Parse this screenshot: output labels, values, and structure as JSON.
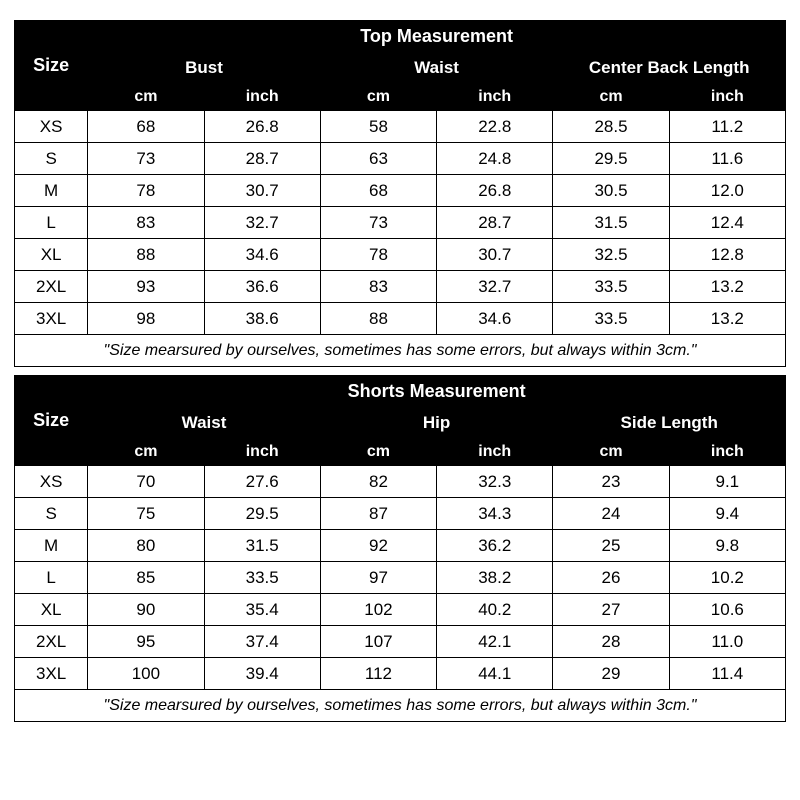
{
  "size_label": "Size",
  "unit_cm": "cm",
  "unit_inch": "inch",
  "footnote": "\"Size mearsured by ourselves, sometimes has some errors, but always within 3cm.\"",
  "top": {
    "title": "Top Measurement",
    "groups": [
      "Bust",
      "Waist",
      "Center Back Length"
    ],
    "rows": [
      {
        "size": "XS",
        "v": [
          "68",
          "26.8",
          "58",
          "22.8",
          "28.5",
          "11.2"
        ]
      },
      {
        "size": "S",
        "v": [
          "73",
          "28.7",
          "63",
          "24.8",
          "29.5",
          "11.6"
        ]
      },
      {
        "size": "M",
        "v": [
          "78",
          "30.7",
          "68",
          "26.8",
          "30.5",
          "12.0"
        ]
      },
      {
        "size": "L",
        "v": [
          "83",
          "32.7",
          "73",
          "28.7",
          "31.5",
          "12.4"
        ]
      },
      {
        "size": "XL",
        "v": [
          "88",
          "34.6",
          "78",
          "30.7",
          "32.5",
          "12.8"
        ]
      },
      {
        "size": "2XL",
        "v": [
          "93",
          "36.6",
          "83",
          "32.7",
          "33.5",
          "13.2"
        ]
      },
      {
        "size": "3XL",
        "v": [
          "98",
          "38.6",
          "88",
          "34.6",
          "33.5",
          "13.2"
        ]
      }
    ]
  },
  "shorts": {
    "title": "Shorts Measurement",
    "groups": [
      "Waist",
      "Hip",
      "Side Length"
    ],
    "rows": [
      {
        "size": "XS",
        "v": [
          "70",
          "27.6",
          "82",
          "32.3",
          "23",
          "9.1"
        ]
      },
      {
        "size": "S",
        "v": [
          "75",
          "29.5",
          "87",
          "34.3",
          "24",
          "9.4"
        ]
      },
      {
        "size": "M",
        "v": [
          "80",
          "31.5",
          "92",
          "36.2",
          "25",
          "9.8"
        ]
      },
      {
        "size": "L",
        "v": [
          "85",
          "33.5",
          "97",
          "38.2",
          "26",
          "10.2"
        ]
      },
      {
        "size": "XL",
        "v": [
          "90",
          "35.4",
          "102",
          "40.2",
          "27",
          "10.6"
        ]
      },
      {
        "size": "2XL",
        "v": [
          "95",
          "37.4",
          "107",
          "42.1",
          "28",
          "11.0"
        ]
      },
      {
        "size": "3XL",
        "v": [
          "100",
          "39.4",
          "112",
          "44.1",
          "29",
          "11.4"
        ]
      }
    ]
  },
  "colors": {
    "headerBg": "#000000",
    "headerText": "#ffffff",
    "cellBg": "#ffffff",
    "cellText": "#000000",
    "border": "#000000"
  }
}
